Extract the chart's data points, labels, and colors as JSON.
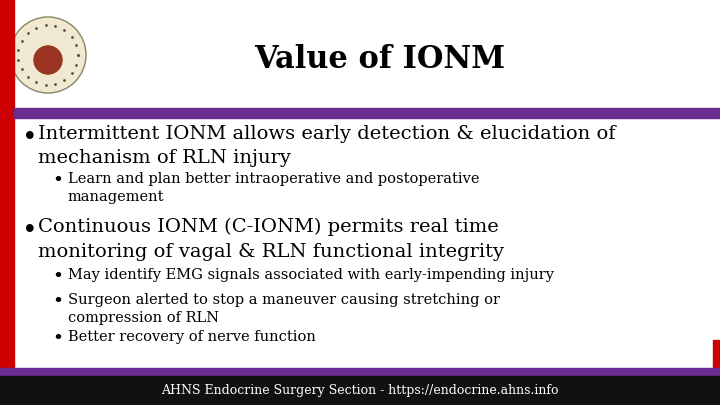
{
  "title": "Value of IONM",
  "title_fontsize": 22,
  "title_fontweight": "bold",
  "title_color": "#000000",
  "bg_color": "#ffffff",
  "header_bar_color": "#6B2C91",
  "footer_bar_color": "#6B2C91",
  "footer_bg_color": "#111111",
  "footer_text": "AHNS Endocrine Surgery Section - https://endocrine.ahns.info",
  "footer_text_color": "#ffffff",
  "footer_fontsize": 9,
  "bullet1_main": "Intermittent IONM allows early detection & elucidation of\nmechanism of RLN injury",
  "bullet1_sub1": "Learn and plan better intraoperative and postoperative\nmanagement",
  "bullet2_main": "Continuous IONM (C-IONM) permits real time\nmonitoring of vagal & RLN functional integrity",
  "bullet2_sub1": "May identify EMG signals associated with early-impending injury",
  "bullet2_sub2": "Surgeon alerted to stop a maneuver causing stretching or\ncompression of RLN",
  "bullet2_sub3": "Better recovery of nerve function",
  "main_bullet_fontsize": 14,
  "sub_bullet_fontsize": 10.5,
  "text_color": "#000000",
  "left_bar_color": "#cc0000",
  "right_bar_color": "#cc0000",
  "font_family": "DejaVu Serif"
}
